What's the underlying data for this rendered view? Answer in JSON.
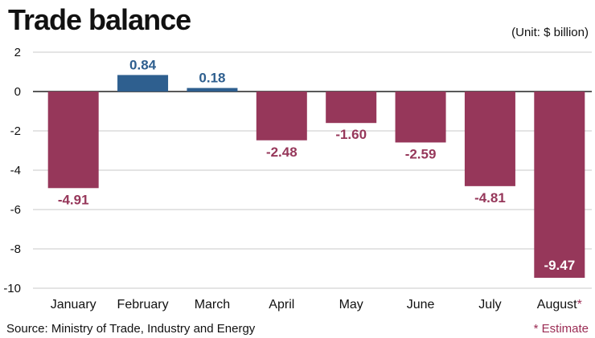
{
  "chart_data": {
    "type": "bar",
    "title": "Trade balance",
    "unit_label": "(Unit: $ billion)",
    "categories": [
      "January",
      "February",
      "March",
      "April",
      "May",
      "June",
      "July",
      "August"
    ],
    "category_suffix": [
      "",
      "",
      "",
      "",
      "",
      "",
      "",
      "*"
    ],
    "values": [
      -4.91,
      0.84,
      0.18,
      -2.48,
      -1.6,
      -2.59,
      -4.81,
      -9.47
    ],
    "value_labels": [
      "-4.91",
      "0.84",
      "0.18",
      "-2.48",
      "-1.60",
      "-2.59",
      "-4.81",
      "-9.47"
    ],
    "ylim": [
      -10,
      2
    ],
    "yticks": [
      2,
      0,
      -2,
      -4,
      -6,
      -8,
      -10
    ],
    "ytick_labels": [
      "2",
      "0",
      "-2",
      "-4",
      "-6",
      "-8",
      "-10"
    ],
    "grid": "horizontal",
    "colors": {
      "positive": "#2e5f8f",
      "negative": "#96375a",
      "label_negative": "#96375a",
      "label_positive": "#2e5f8f",
      "gridline": "#c8c8c8",
      "estimate": "#9b2c54"
    },
    "source": "Source: Ministry of Trade, Industry and Energy",
    "note": "* Estimate"
  }
}
